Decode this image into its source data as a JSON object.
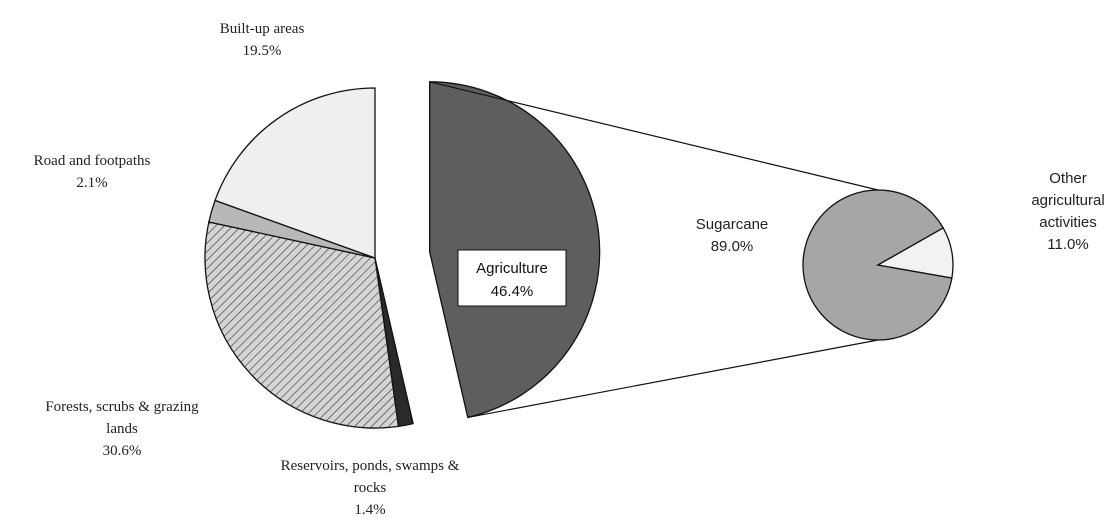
{
  "chart_data": {
    "type": "pie_of_pie",
    "categories": [
      "Agriculture",
      "Reservoirs, ponds, swamps & rocks",
      "Forests, scrubs & grazing lands",
      "Road and footpaths",
      "Built-up areas"
    ],
    "values": [
      46.4,
      1.4,
      30.6,
      2.1,
      19.5
    ],
    "value_labels": [
      "46.4%",
      "1.4%",
      "30.6%",
      "2.1%",
      "19.5%"
    ],
    "colors": [
      "#5e5e5e",
      "#2a2a2a",
      "#d4d4d4",
      "#b8b8b8",
      "#efefef"
    ],
    "secondary": {
      "categories": [
        "Sugarcane",
        "Other agricultural activities"
      ],
      "values": [
        89.0,
        11.0
      ],
      "value_labels": [
        "89.0%",
        "11.0%"
      ],
      "colors": [
        "#a6a6a6",
        "#f2f2f2"
      ]
    }
  }
}
